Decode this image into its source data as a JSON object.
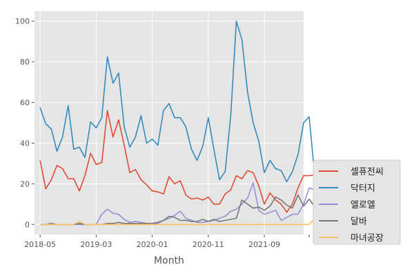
{
  "chart_data": {
    "type": "line",
    "title": "",
    "xlabel": "Month",
    "ylabel": "",
    "ylim": [
      -5,
      105
    ],
    "x_range": [
      -1,
      47
    ],
    "yticks": [
      0,
      20,
      40,
      60,
      80,
      100
    ],
    "xticks": [
      {
        "value": 0,
        "label": "2018-05"
      },
      {
        "value": 10,
        "label": "2019-03"
      },
      {
        "value": 20,
        "label": "2020-01"
      },
      {
        "value": 30,
        "label": "2020-11"
      },
      {
        "value": 40,
        "label": "2021-09"
      },
      {
        "value": 48,
        "label": ""
      }
    ],
    "grid": true,
    "legend_position": "outside-right-bottom",
    "series": [
      {
        "name": "셀퓨전씨",
        "color": "#E24A33",
        "values": [
          31.5,
          17.5,
          22,
          29,
          27.5,
          22.5,
          22.5,
          16.5,
          24,
          35,
          29.5,
          30.5,
          56,
          43,
          51.5,
          39,
          25.5,
          27,
          22,
          19.5,
          16.5,
          16,
          15,
          23.5,
          20,
          21.5,
          14.5,
          12.5,
          13,
          12,
          13.5,
          10,
          10,
          15,
          17,
          24,
          22.5,
          26.5,
          25.5,
          19,
          10,
          15.5,
          12,
          10,
          6,
          10,
          18,
          24,
          24,
          24.5
        ]
      },
      {
        "name": "닥터지",
        "color": "#348ABD",
        "values": [
          57.5,
          49.5,
          47,
          36,
          43,
          58.5,
          37,
          38,
          33,
          50.5,
          47.5,
          52.5,
          82.5,
          69.5,
          74.5,
          48,
          38,
          43,
          53.5,
          40,
          42,
          39,
          56,
          59.5,
          52.5,
          52.5,
          48,
          37,
          31.5,
          38.5,
          52.5,
          37,
          22,
          26,
          53.5,
          100,
          91,
          65,
          50,
          41,
          25.5,
          31.5,
          27.5,
          26.5,
          21,
          26,
          34.5,
          50,
          53,
          23
        ]
      },
      {
        "name": "엘로엘",
        "color": "#988ED5",
        "values": [
          0,
          0,
          0,
          0,
          0,
          0,
          0,
          0,
          0,
          0,
          0,
          5,
          7.5,
          5.5,
          5,
          2.5,
          1,
          1.5,
          1,
          0.5,
          0.5,
          0.5,
          2,
          3,
          4.5,
          6.5,
          3,
          2,
          1,
          1,
          1.5,
          2,
          3,
          4,
          6.5,
          7.5,
          10,
          13,
          20.5,
          7,
          5,
          6,
          7,
          2,
          3.5,
          5,
          5,
          10,
          18,
          17
        ]
      },
      {
        "name": "달바",
        "color": "#777777",
        "values": [
          0,
          0,
          0.5,
          0,
          0,
          0,
          0,
          0.5,
          0,
          0,
          0,
          0,
          0.5,
          0.5,
          1,
          0.5,
          0.5,
          0.5,
          0.5,
          0.5,
          0.5,
          1,
          2,
          4,
          3.5,
          2,
          2,
          1.5,
          1.5,
          2.5,
          1.5,
          2.5,
          1.5,
          2,
          2.5,
          3,
          12,
          10,
          8,
          8.5,
          7,
          9,
          13.5,
          12,
          9.5,
          8,
          14.5,
          9,
          12.5,
          8.5
        ]
      },
      {
        "name": "마녀공장",
        "color": "#FBC15E",
        "values": [
          0,
          0,
          0,
          0,
          0,
          0,
          0,
          1.5,
          0,
          0,
          0,
          0,
          0,
          0,
          0,
          0,
          0,
          0,
          0,
          0,
          0,
          0,
          0,
          0,
          0,
          0,
          0,
          0,
          0,
          0,
          0,
          0,
          0,
          0,
          0,
          0,
          0,
          0,
          0,
          0,
          0,
          0,
          0,
          0,
          0,
          0,
          0,
          0,
          0,
          3
        ]
      }
    ]
  }
}
